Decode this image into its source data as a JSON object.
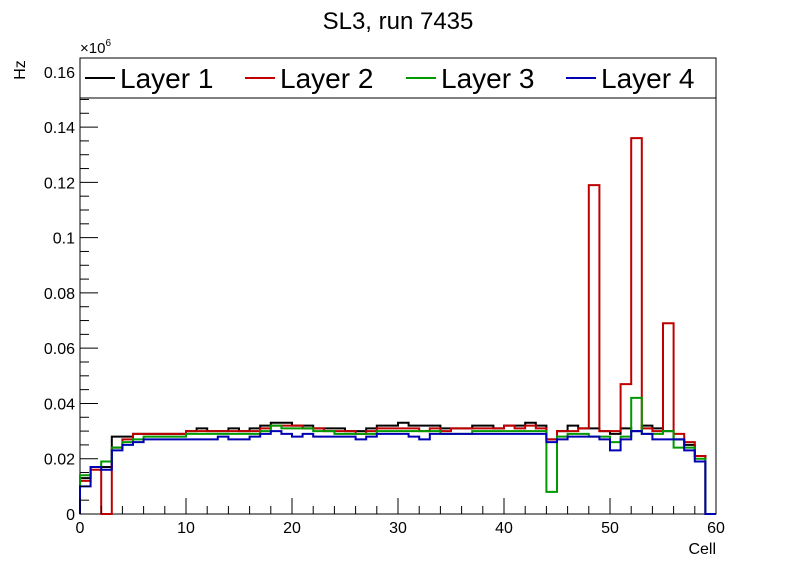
{
  "chart_data": {
    "type": "line",
    "title": "SL3, run 7435",
    "xlabel": "Cell",
    "ylabel": "Hz",
    "y_exponent_label": "×10",
    "y_exponent_power": "6",
    "xlim": [
      0,
      60
    ],
    "ylim": [
      0,
      0.165
    ],
    "x_ticks": [
      0,
      10,
      20,
      30,
      40,
      50,
      60
    ],
    "x_tick_labels": [
      "0",
      "10",
      "20",
      "30",
      "40",
      "50",
      "60"
    ],
    "y_ticks": [
      0,
      0.02,
      0.04,
      0.06,
      0.08,
      0.1,
      0.12,
      0.14,
      0.16
    ],
    "y_tick_labels": [
      "0",
      "0.02",
      "0.04",
      "0.06",
      "0.08",
      "0.1",
      "0.12",
      "0.14",
      "0.16"
    ],
    "grid": false,
    "legend_position": "top",
    "bin_edges_start": 0,
    "bin_width": 1,
    "series": [
      {
        "name": "Layer 1",
        "color": "#000000",
        "values": [
          0.013,
          0.017,
          0.017,
          0.028,
          0.028,
          0.029,
          0.029,
          0.029,
          0.029,
          0.029,
          0.03,
          0.031,
          0.03,
          0.03,
          0.031,
          0.03,
          0.031,
          0.032,
          0.033,
          0.033,
          0.032,
          0.032,
          0.031,
          0.031,
          0.031,
          0.03,
          0.03,
          0.031,
          0.032,
          0.032,
          0.033,
          0.032,
          0.032,
          0.032,
          0.031,
          0.031,
          0.031,
          0.032,
          0.032,
          0.031,
          0.032,
          0.032,
          0.033,
          0.032,
          0.027,
          0.03,
          0.032,
          0.031,
          0.031,
          0.03,
          0.029,
          0.031,
          0.03,
          0.032,
          0.031,
          0.03,
          0.027,
          0.025,
          0.021,
          0.0
        ]
      },
      {
        "name": "Layer 2",
        "color": "#c00000",
        "values": [
          0.012,
          0.016,
          0.0,
          0.024,
          0.027,
          0.029,
          0.029,
          0.029,
          0.029,
          0.029,
          0.03,
          0.03,
          0.03,
          0.03,
          0.03,
          0.03,
          0.03,
          0.031,
          0.032,
          0.032,
          0.032,
          0.031,
          0.031,
          0.03,
          0.03,
          0.03,
          0.029,
          0.03,
          0.031,
          0.031,
          0.031,
          0.031,
          0.03,
          0.031,
          0.03,
          0.031,
          0.031,
          0.031,
          0.031,
          0.031,
          0.032,
          0.031,
          0.032,
          0.031,
          0.027,
          0.03,
          0.03,
          0.031,
          0.119,
          0.03,
          0.03,
          0.047,
          0.136,
          0.031,
          0.03,
          0.069,
          0.029,
          0.026,
          0.021,
          0.0
        ]
      },
      {
        "name": "Layer 3",
        "color": "#009900",
        "values": [
          0.014,
          0.017,
          0.019,
          0.024,
          0.026,
          0.027,
          0.028,
          0.028,
          0.028,
          0.028,
          0.029,
          0.029,
          0.029,
          0.029,
          0.029,
          0.029,
          0.029,
          0.03,
          0.032,
          0.031,
          0.031,
          0.031,
          0.03,
          0.03,
          0.029,
          0.029,
          0.029,
          0.029,
          0.03,
          0.03,
          0.03,
          0.03,
          0.03,
          0.03,
          0.029,
          0.029,
          0.029,
          0.03,
          0.03,
          0.03,
          0.03,
          0.03,
          0.03,
          0.03,
          0.008,
          0.028,
          0.029,
          0.029,
          0.028,
          0.028,
          0.026,
          0.028,
          0.042,
          0.029,
          0.029,
          0.03,
          0.024,
          0.024,
          0.02,
          0.0
        ]
      },
      {
        "name": "Layer 4",
        "color": "#0000b3",
        "values": [
          0.01,
          0.017,
          0.016,
          0.023,
          0.025,
          0.026,
          0.027,
          0.027,
          0.027,
          0.027,
          0.027,
          0.027,
          0.027,
          0.028,
          0.027,
          0.027,
          0.028,
          0.029,
          0.03,
          0.029,
          0.028,
          0.029,
          0.028,
          0.028,
          0.028,
          0.028,
          0.027,
          0.028,
          0.029,
          0.029,
          0.029,
          0.028,
          0.027,
          0.029,
          0.029,
          0.029,
          0.029,
          0.029,
          0.029,
          0.029,
          0.029,
          0.029,
          0.029,
          0.029,
          0.026,
          0.027,
          0.028,
          0.028,
          0.028,
          0.027,
          0.023,
          0.027,
          0.03,
          0.029,
          0.027,
          0.027,
          0.027,
          0.023,
          0.019,
          0.0
        ]
      }
    ]
  }
}
